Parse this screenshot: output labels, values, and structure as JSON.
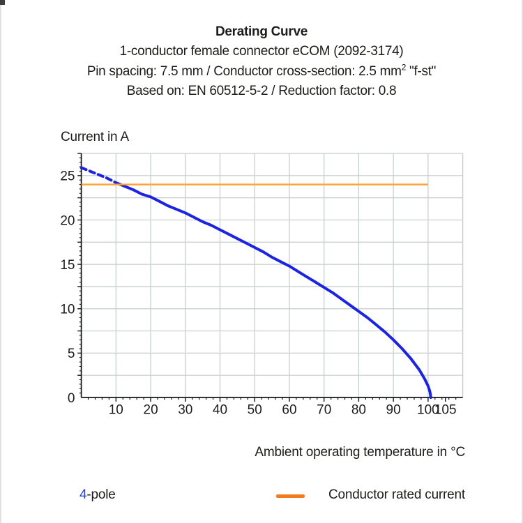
{
  "header": {
    "title": "Derating Curve",
    "line2": "1-conductor female connector eCOM (2092-3174)",
    "line3_prefix": "Pin spacing: 7.5 mm / Conductor cross-section: 2.5 mm",
    "line3_sup": "2",
    "line3_suffix": " \"f-st\"",
    "line4": "Based on: EN 60512-5-2 / Reduction factor: 0.8"
  },
  "chart_data": {
    "type": "line",
    "title": "Derating Curve",
    "xlabel": "Ambient operating temperature in °C",
    "ylabel": "Current in A",
    "xlim": [
      0,
      110
    ],
    "ylim": [
      0,
      27.5
    ],
    "grid": true,
    "x_gridlines": [
      10,
      20,
      30,
      40,
      50,
      60,
      70,
      80,
      90,
      100
    ],
    "y_gridlines": [
      2.5,
      5,
      7.5,
      10,
      12.5,
      15,
      17.5,
      20,
      22.5,
      25,
      27.5
    ],
    "x_tick_values": [
      10,
      20,
      30,
      40,
      50,
      60,
      70,
      80,
      90,
      100,
      105
    ],
    "x_tick_labels": [
      "10",
      "20",
      "30",
      "40",
      "50",
      "60",
      "70",
      "80",
      "90",
      "100",
      "105"
    ],
    "y_tick_values": [
      0,
      5,
      10,
      15,
      20,
      25
    ],
    "y_tick_labels": [
      "0",
      "5",
      "10",
      "15",
      "20",
      "25"
    ],
    "x_minor_tick_step": 2,
    "y_minor_tick_step": 0.5,
    "colors": {
      "curve": "#1c24e0",
      "rated_line": "#ffa033",
      "legend_swatch": "#f4791f",
      "grid": "#c4cdca",
      "axis": "#151515",
      "text": "#1c1c1a",
      "pole_number": "#2440ea"
    },
    "series": [
      {
        "name": "4-pole",
        "type": "curve",
        "color": "#1c24e0",
        "dashed_until_x": 10,
        "points": [
          [
            0,
            25.9
          ],
          [
            2.5,
            25.5
          ],
          [
            5,
            25.1
          ],
          [
            7.5,
            24.7
          ],
          [
            10,
            24.2
          ],
          [
            12.5,
            23.8
          ],
          [
            15,
            23.4
          ],
          [
            17.5,
            22.9
          ],
          [
            20,
            22.6
          ],
          [
            22.5,
            22.1
          ],
          [
            25,
            21.6
          ],
          [
            27.5,
            21.2
          ],
          [
            30,
            20.8
          ],
          [
            32.5,
            20.3
          ],
          [
            35,
            19.8
          ],
          [
            37.5,
            19.4
          ],
          [
            40,
            18.9
          ],
          [
            42.5,
            18.4
          ],
          [
            45,
            17.9
          ],
          [
            47.5,
            17.4
          ],
          [
            50,
            16.9
          ],
          [
            52.5,
            16.4
          ],
          [
            55,
            15.8
          ],
          [
            57.5,
            15.3
          ],
          [
            60,
            14.8
          ],
          [
            62.5,
            14.2
          ],
          [
            65,
            13.6
          ],
          [
            67.5,
            13.0
          ],
          [
            70,
            12.4
          ],
          [
            72.5,
            11.8
          ],
          [
            75,
            11.1
          ],
          [
            77.5,
            10.4
          ],
          [
            80,
            9.7
          ],
          [
            82.5,
            9.0
          ],
          [
            85,
            8.2
          ],
          [
            87.5,
            7.4
          ],
          [
            90,
            6.5
          ],
          [
            92.5,
            5.5
          ],
          [
            95,
            4.4
          ],
          [
            97.5,
            3.1
          ],
          [
            99,
            2.1
          ],
          [
            100,
            1.3
          ],
          [
            100.5,
            0.7
          ],
          [
            100.8,
            0
          ]
        ]
      },
      {
        "name": "Conductor rated current",
        "type": "horizontal-line",
        "color": "#ffa033",
        "value": 24,
        "x_range": [
          0,
          100
        ]
      }
    ],
    "legend_position": "bottom"
  },
  "legend": {
    "pole_number": "4",
    "pole_suffix": "-pole",
    "rated_label": "Conductor rated current"
  }
}
